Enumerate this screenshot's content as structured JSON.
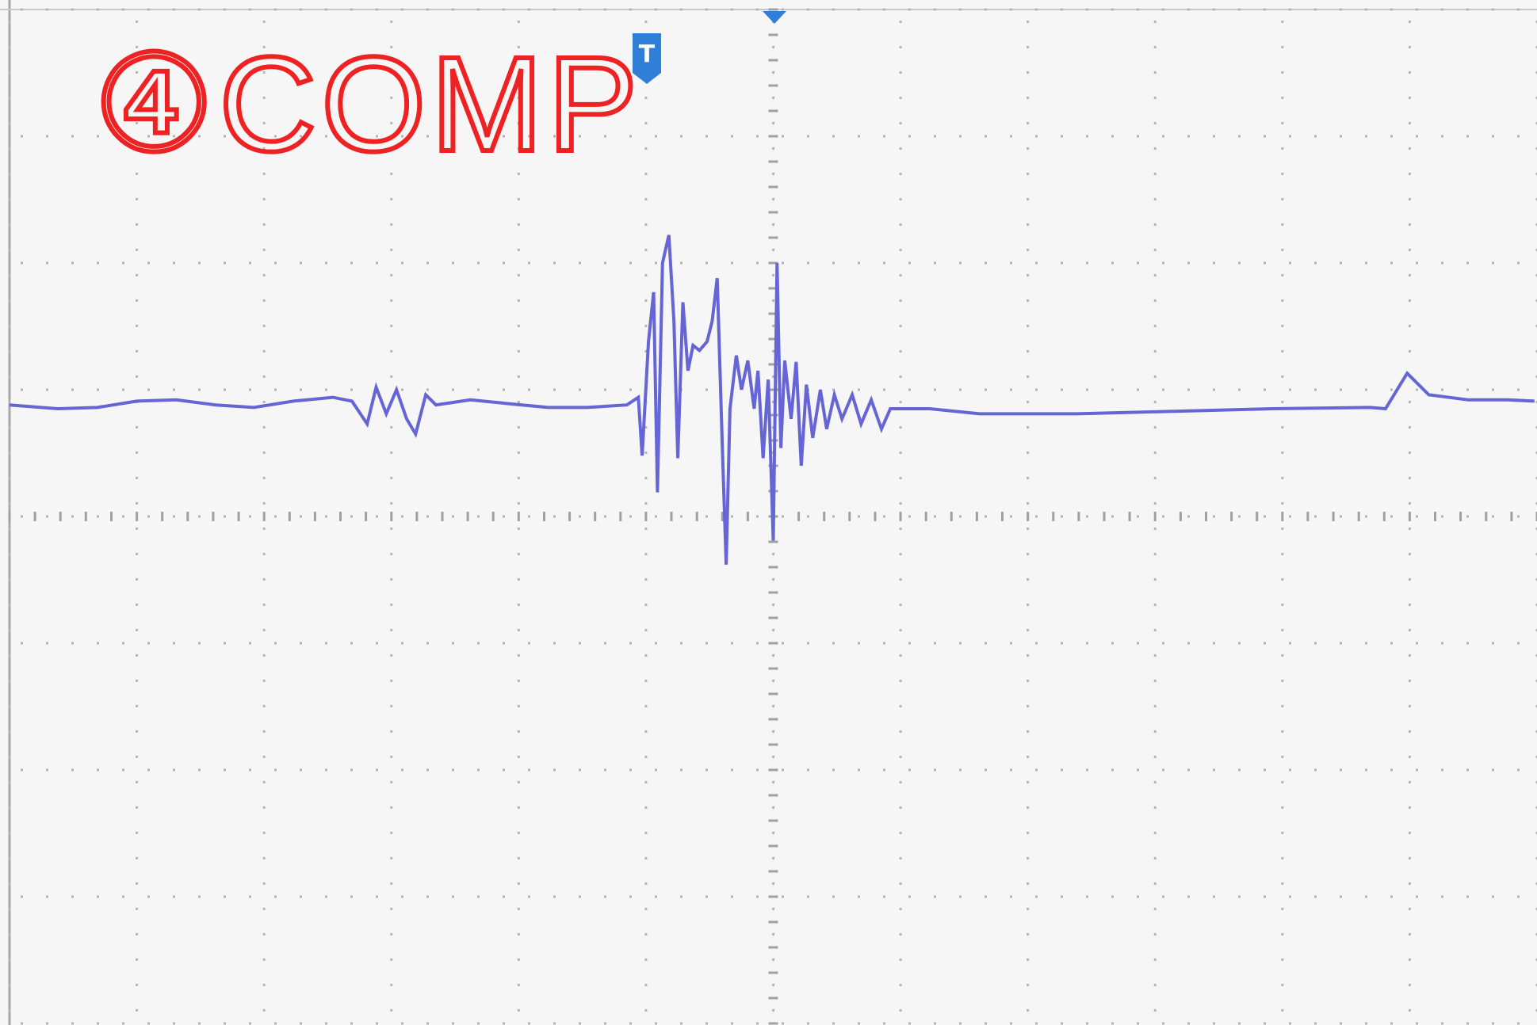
{
  "chart_data": {
    "type": "line",
    "annotation": "④COMP",
    "trigger_label": "T",
    "xlim": [
      -6,
      6
    ],
    "ylim": [
      -4,
      4
    ],
    "xticks": [
      -6,
      -5,
      -4,
      -3,
      -2,
      -1,
      0,
      1,
      2,
      3,
      4,
      5,
      6
    ],
    "yticks": [
      -4,
      -3,
      -2,
      -1,
      0,
      1,
      2,
      3,
      4
    ],
    "grid": true,
    "x": [
      -6.0,
      -5.62,
      -5.31,
      -5.0,
      -4.69,
      -4.38,
      -4.08,
      -3.77,
      -3.46,
      -3.31,
      -3.19,
      -3.12,
      -3.04,
      -2.96,
      -2.88,
      -2.81,
      -2.73,
      -2.65,
      -2.38,
      -2.08,
      -1.77,
      -1.46,
      -1.15,
      -1.06,
      -1.03,
      -0.98,
      -0.94,
      -0.91,
      -0.87,
      -0.82,
      -0.78,
      -0.75,
      -0.71,
      -0.67,
      -0.63,
      -0.58,
      -0.52,
      -0.48,
      -0.44,
      -0.4,
      -0.37,
      -0.34,
      -0.29,
      -0.25,
      -0.2,
      -0.15,
      -0.12,
      -0.08,
      -0.04,
      0,
      0.03,
      0.06,
      0.09,
      0.14,
      0.18,
      0.22,
      0.26,
      0.31,
      0.37,
      0.42,
      0.48,
      0.54,
      0.62,
      0.69,
      0.77,
      0.85,
      0.92,
      1.23,
      1.62,
      2.38,
      3.15,
      3.92,
      4.69,
      4.81,
      4.98,
      5.15,
      5.46,
      5.77,
      5.98
    ],
    "series": [
      {
        "color": "#6565d6",
        "values": [
          0.88,
          0.85,
          0.86,
          0.91,
          0.92,
          0.88,
          0.86,
          0.91,
          0.94,
          0.91,
          0.73,
          1.02,
          0.81,
          1.0,
          0.77,
          0.65,
          0.96,
          0.88,
          0.92,
          0.89,
          0.86,
          0.86,
          0.88,
          0.94,
          0.48,
          1.38,
          1.77,
          0.19,
          2.0,
          2.22,
          1.54,
          0.46,
          1.69,
          1.15,
          1.35,
          1.31,
          1.38,
          1.54,
          1.88,
          0.54,
          -0.38,
          0.85,
          1.27,
          1.0,
          1.23,
          0.85,
          1.15,
          0.46,
          1.08,
          -0.19,
          2.0,
          0.54,
          1.23,
          0.77,
          1.22,
          0.4,
          1.04,
          0.62,
          1.0,
          0.69,
          0.96,
          0.77,
          0.96,
          0.73,
          0.92,
          0.69,
          0.85,
          0.85,
          0.81,
          0.81,
          0.83,
          0.85,
          0.86,
          0.85,
          1.13,
          0.96,
          0.92,
          0.92,
          0.91
        ]
      }
    ]
  }
}
